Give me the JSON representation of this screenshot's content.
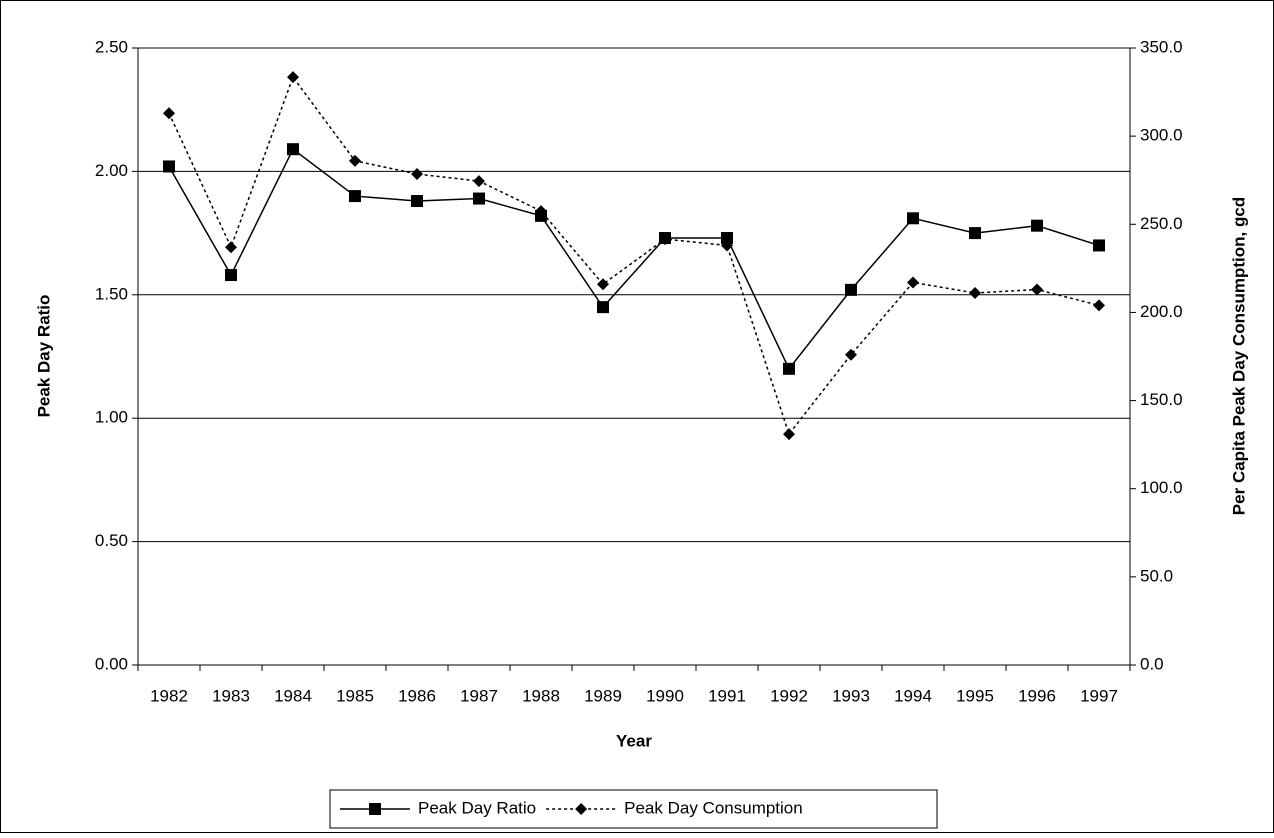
{
  "chart_data": {
    "type": "line",
    "x_label": "Year",
    "y_label": "Peak Day Ratio",
    "y2_label": "Per Capita Peak Day Consumption, gcd",
    "categories": [
      "1982",
      "1983",
      "1984",
      "1985",
      "1986",
      "1987",
      "1988",
      "1989",
      "1990",
      "1991",
      "1992",
      "1993",
      "1994",
      "1995",
      "1996",
      "1997"
    ],
    "ylim": [
      0,
      2.5
    ],
    "yticks": [
      {
        "value": 0,
        "label": "0.00"
      },
      {
        "value": 0.5,
        "label": "0.50"
      },
      {
        "value": 1,
        "label": "1.00"
      },
      {
        "value": 1.5,
        "label": "1.50"
      },
      {
        "value": 2,
        "label": "2.00"
      },
      {
        "value": 2.5,
        "label": "2.50"
      }
    ],
    "y2lim": [
      0,
      350
    ],
    "y2ticks": [
      {
        "value": 0,
        "label": "0.0"
      },
      {
        "value": 50,
        "label": "50.0"
      },
      {
        "value": 100,
        "label": "100.0"
      },
      {
        "value": 150,
        "label": "150.0"
      },
      {
        "value": 200,
        "label": "200.0"
      },
      {
        "value": 250,
        "label": "250.0"
      },
      {
        "value": 300,
        "label": "300.0"
      },
      {
        "value": 350,
        "label": "350.0"
      }
    ],
    "grid": true,
    "legend": "bottom",
    "series": [
      {
        "name": "Peak Day Ratio",
        "color": "#000000",
        "line_style": "solid",
        "marker": "square",
        "values": [
          2.02,
          1.58,
          2.09,
          1.9,
          1.88,
          1.89,
          1.82,
          1.45,
          1.73,
          1.73,
          1.2,
          1.52,
          1.81,
          1.75,
          1.78,
          1.7
        ]
      },
      {
        "name": "Peak Day Consumption",
        "color": "#000000",
        "line_style": "dotted",
        "marker": "diamond",
        "axis": "y2",
        "values": [
          313,
          237,
          333.5,
          286,
          278.5,
          274.5,
          257.5,
          216,
          241.6,
          238,
          131,
          176,
          217,
          211,
          213,
          204
        ]
      }
    ]
  }
}
